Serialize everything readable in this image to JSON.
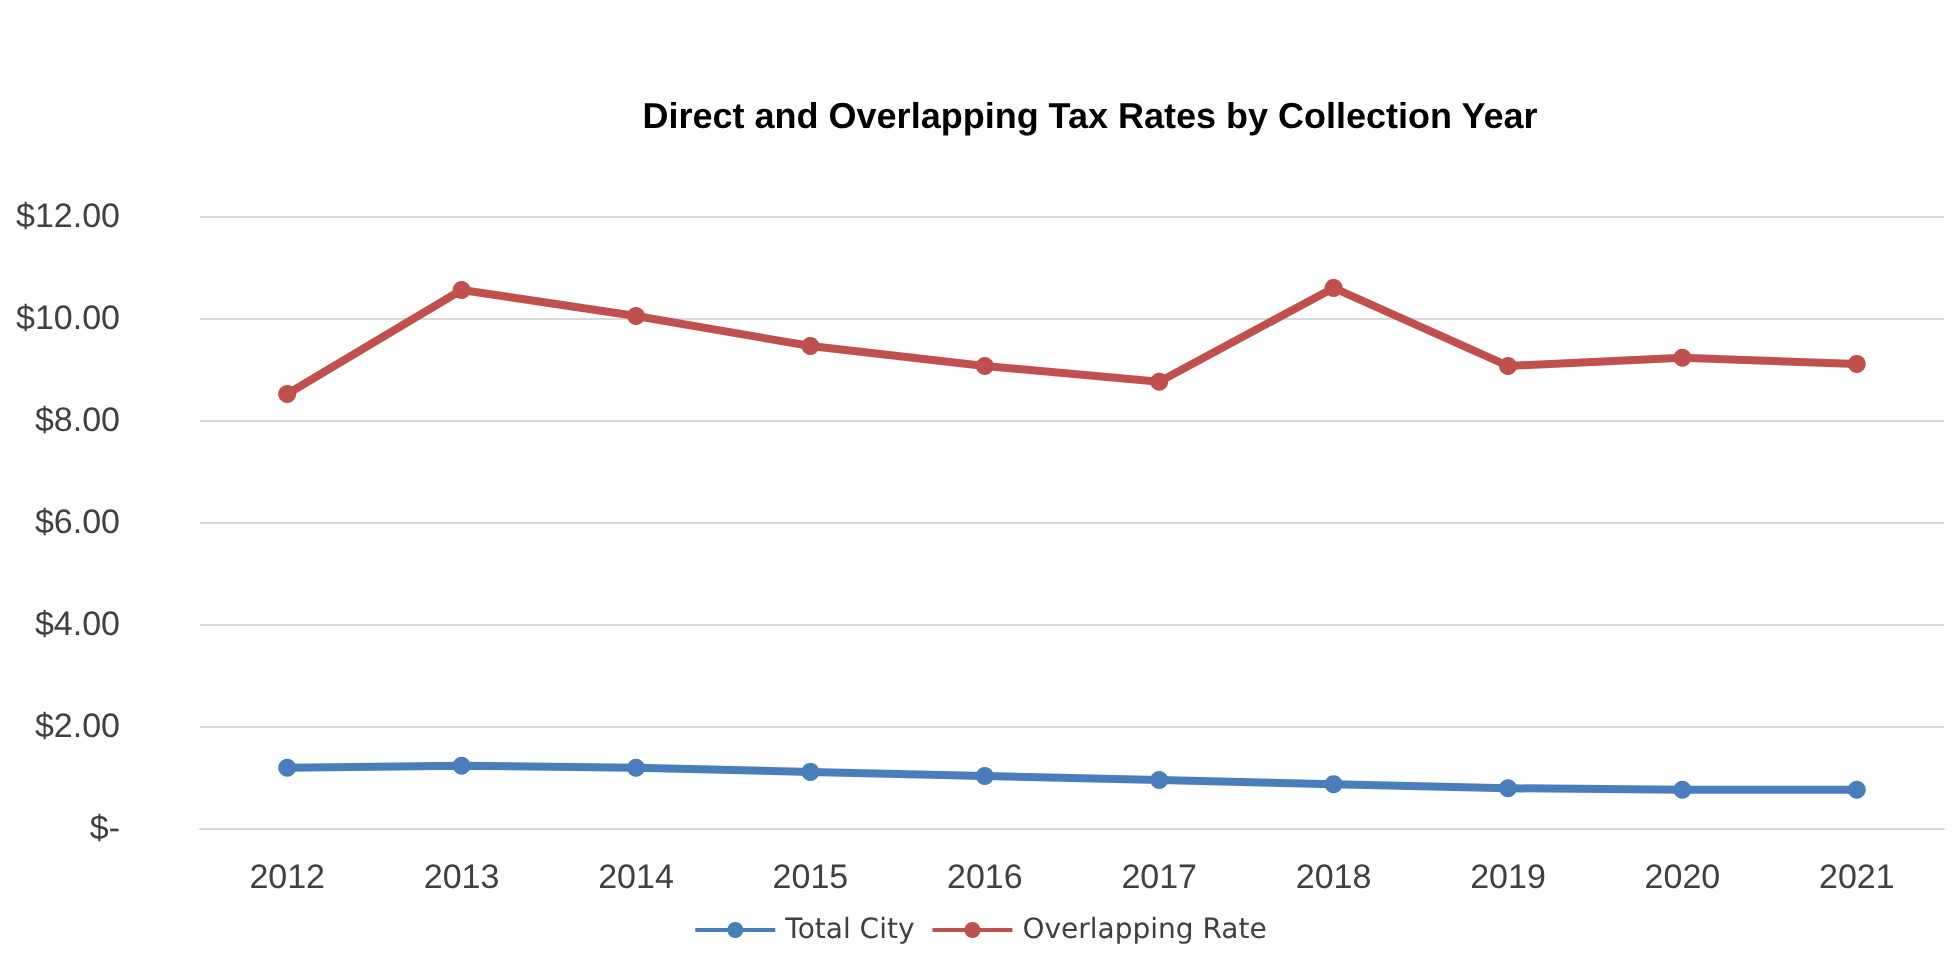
{
  "chart_data": {
    "type": "line",
    "title": "Direct and Overlapping Tax Rates by Collection Year",
    "categories": [
      "2012",
      "2013",
      "2014",
      "2015",
      "2016",
      "2017",
      "2018",
      "2019",
      "2020",
      "2021"
    ],
    "series": [
      {
        "name": "Total City",
        "color": "#4a7ebb",
        "values": [
          1.18,
          1.22,
          1.18,
          1.1,
          1.02,
          0.94,
          0.86,
          0.78,
          0.75,
          0.75
        ]
      },
      {
        "name": "Overlapping Rate",
        "color": "#c0504d",
        "values": [
          8.51,
          10.55,
          10.04,
          9.45,
          9.06,
          8.75,
          10.59,
          9.06,
          9.22,
          9.1
        ]
      }
    ],
    "ylim": [
      0,
      12
    ],
    "yticks": [
      {
        "value": 0,
        "label": "$-"
      },
      {
        "value": 2,
        "label": "$2.00"
      },
      {
        "value": 4,
        "label": "$4.00"
      },
      {
        "value": 6,
        "label": "$6.00"
      },
      {
        "value": 8,
        "label": "$8.00"
      },
      {
        "value": 10,
        "label": "$10.00"
      },
      {
        "value": 12,
        "label": "$12.00"
      }
    ],
    "grid": "y",
    "legend": "bottom",
    "marker": "circle",
    "line_style": "solid"
  }
}
